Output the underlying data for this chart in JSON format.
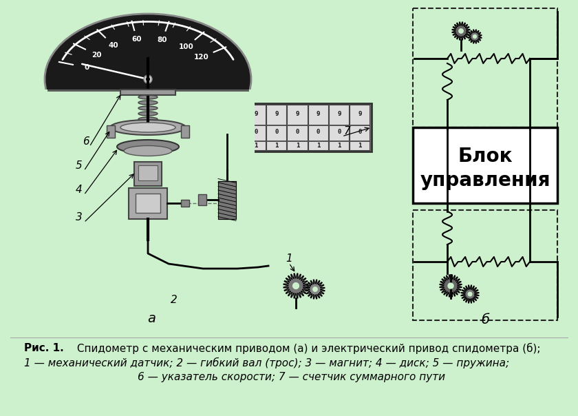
{
  "bg_color": "#cdf0cd",
  "fig_width": 8.4,
  "fig_height": 6.04,
  "dpi": 100,
  "blok_line1": "Блок",
  "blok_line2": "управления",
  "label_a": "а",
  "label_b": "б",
  "caption_bold": "Рис. 1.",
  "caption_rest1": " Спидометр с механическим приводом (а) и электрический привод спидометра (б);",
  "caption_line2": "1 — механический датчик; 2 — гибкий вал (трос); 3 — магнит; 4 — диск; 5 — пружина;",
  "caption_line3": "6 — указатель скорости; 7 — счетчик суммарного пути",
  "speedo_numbers": [
    "0",
    "20",
    "40",
    "60",
    "80",
    "100",
    "120"
  ],
  "speedo_angles_deg": [
    197,
    217,
    237,
    260,
    283,
    307,
    327
  ]
}
